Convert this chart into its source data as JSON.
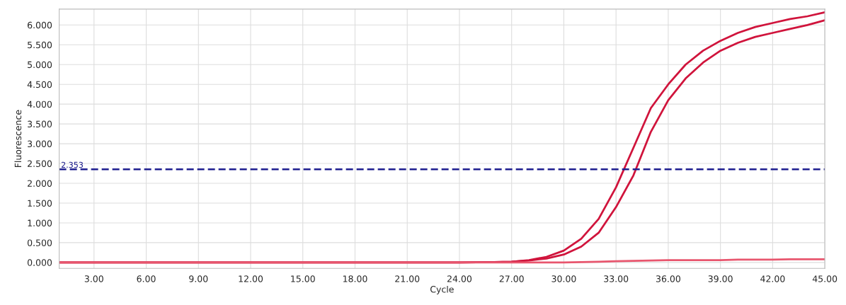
{
  "chart_data": {
    "type": "line",
    "xlabel": "Cycle",
    "ylabel": "Fluorescence",
    "x": [
      1,
      3,
      6,
      9,
      12,
      15,
      18,
      21,
      24,
      26,
      27,
      28,
      29,
      30,
      31,
      32,
      33,
      34,
      35,
      36,
      37,
      38,
      39,
      40,
      41,
      42,
      43,
      44,
      45
    ],
    "series": [
      {
        "color": "#d0143c",
        "values": [
          0,
          0,
          0,
          0,
          0,
          0,
          0,
          0,
          0,
          0.01,
          0.02,
          0.06,
          0.14,
          0.3,
          0.6,
          1.1,
          1.9,
          2.9,
          3.9,
          4.5,
          5.0,
          5.35,
          5.6,
          5.8,
          5.95,
          6.05,
          6.15,
          6.22,
          6.32
        ]
      },
      {
        "color": "#d0143c",
        "values": [
          0,
          0,
          0,
          0,
          0,
          0,
          0,
          0,
          0,
          0.01,
          0.02,
          0.05,
          0.1,
          0.2,
          0.4,
          0.75,
          1.4,
          2.2,
          3.3,
          4.1,
          4.65,
          5.05,
          5.35,
          5.55,
          5.7,
          5.8,
          5.9,
          6.0,
          6.12
        ]
      },
      {
        "color": "#e8566e",
        "values": [
          0,
          0,
          0,
          0,
          0,
          0,
          0,
          0,
          0,
          0,
          0,
          0,
          0,
          0,
          0.01,
          0.02,
          0.03,
          0.04,
          0.05,
          0.06,
          0.06,
          0.06,
          0.06,
          0.07,
          0.07,
          0.07,
          0.08,
          0.08,
          0.08
        ]
      }
    ],
    "xlim": [
      1,
      45
    ],
    "xticks": [
      {
        "value": 3,
        "label": "3.00"
      },
      {
        "value": 6,
        "label": "6.00"
      },
      {
        "value": 9,
        "label": "9.00"
      },
      {
        "value": 12,
        "label": "12.00"
      },
      {
        "value": 15,
        "label": "15.00"
      },
      {
        "value": 18,
        "label": "18.00"
      },
      {
        "value": 21,
        "label": "21.00"
      },
      {
        "value": 24,
        "label": "24.00"
      },
      {
        "value": 27,
        "label": "27.00"
      },
      {
        "value": 30,
        "label": "30.00"
      },
      {
        "value": 33,
        "label": "33.00"
      },
      {
        "value": 36,
        "label": "36.00"
      },
      {
        "value": 39,
        "label": "39.00"
      },
      {
        "value": 42,
        "label": "42.00"
      },
      {
        "value": 45,
        "label": "45.00"
      }
    ],
    "ylim": [
      -0.15,
      6.4
    ],
    "yticks": [
      {
        "value": 0,
        "label": "0.000"
      },
      {
        "value": 0.5,
        "label": "0.500"
      },
      {
        "value": 1,
        "label": "1.000"
      },
      {
        "value": 1.5,
        "label": "1.500"
      },
      {
        "value": 2,
        "label": "2.000"
      },
      {
        "value": 2.5,
        "label": "2.500"
      },
      {
        "value": 3,
        "label": "3.000"
      },
      {
        "value": 3.5,
        "label": "3.500"
      },
      {
        "value": 4,
        "label": "4.000"
      },
      {
        "value": 4.5,
        "label": "4.500"
      },
      {
        "value": 5,
        "label": "5.000"
      },
      {
        "value": 5.5,
        "label": "5.500"
      },
      {
        "value": 6,
        "label": "6.000"
      }
    ],
    "ref_lines": [
      {
        "axis": "y",
        "value": 2.353,
        "label": "2.353",
        "color": "#1f1f8f",
        "line_style": "dashed"
      }
    ],
    "grid": true,
    "marker": "none",
    "line_style": "solid"
  }
}
